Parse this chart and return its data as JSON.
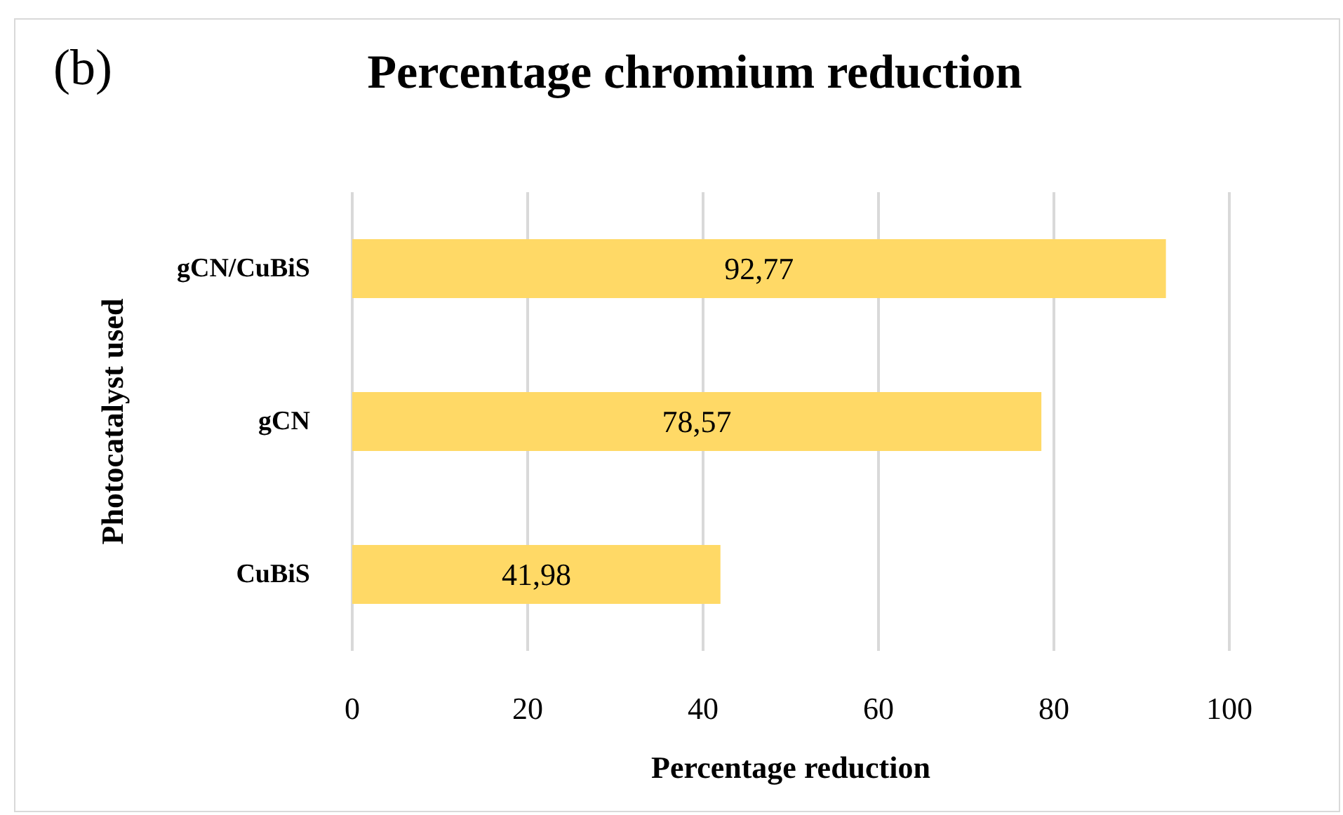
{
  "chart_data": {
    "type": "bar",
    "orientation": "horizontal",
    "title": "Percentage chromium reduction",
    "annotations": [
      "(b)"
    ],
    "xlabel": "Percentage reduction",
    "ylabel": "Photocatalyst used",
    "categories": [
      "gCN/CuBiS",
      "gCN",
      "CuBiS"
    ],
    "values": [
      92.77,
      78.57,
      41.98
    ],
    "value_labels": [
      "92,77",
      "78,57",
      "41,98"
    ],
    "color": "#ffd966",
    "xlim": [
      0,
      100
    ],
    "xticks": [
      0,
      20,
      40,
      60,
      80,
      100
    ],
    "grid": "x"
  }
}
